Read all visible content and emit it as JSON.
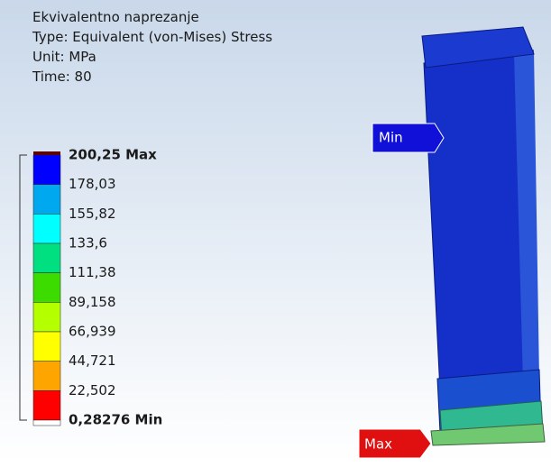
{
  "header": {
    "lines": [
      "Ekvivalentno naprezanje",
      "Type: Equivalent (von-Mises) Stress",
      "Unit: MPa",
      "Time: 80"
    ]
  },
  "legend": {
    "labels": [
      "200,25 Max",
      "178,03",
      "155,82",
      "133,6",
      "111,38",
      "89,158",
      "66,939",
      "44,721",
      "22,502",
      "0,28276 Min"
    ],
    "colors": [
      "#ff0000",
      "#ffa500",
      "#ffff00",
      "#b4ff00",
      "#3cdc00",
      "#00e080",
      "#00ffff",
      "#00a8f0",
      "#0000ff"
    ]
  },
  "probes": {
    "min": "Min",
    "max": "Max"
  }
}
